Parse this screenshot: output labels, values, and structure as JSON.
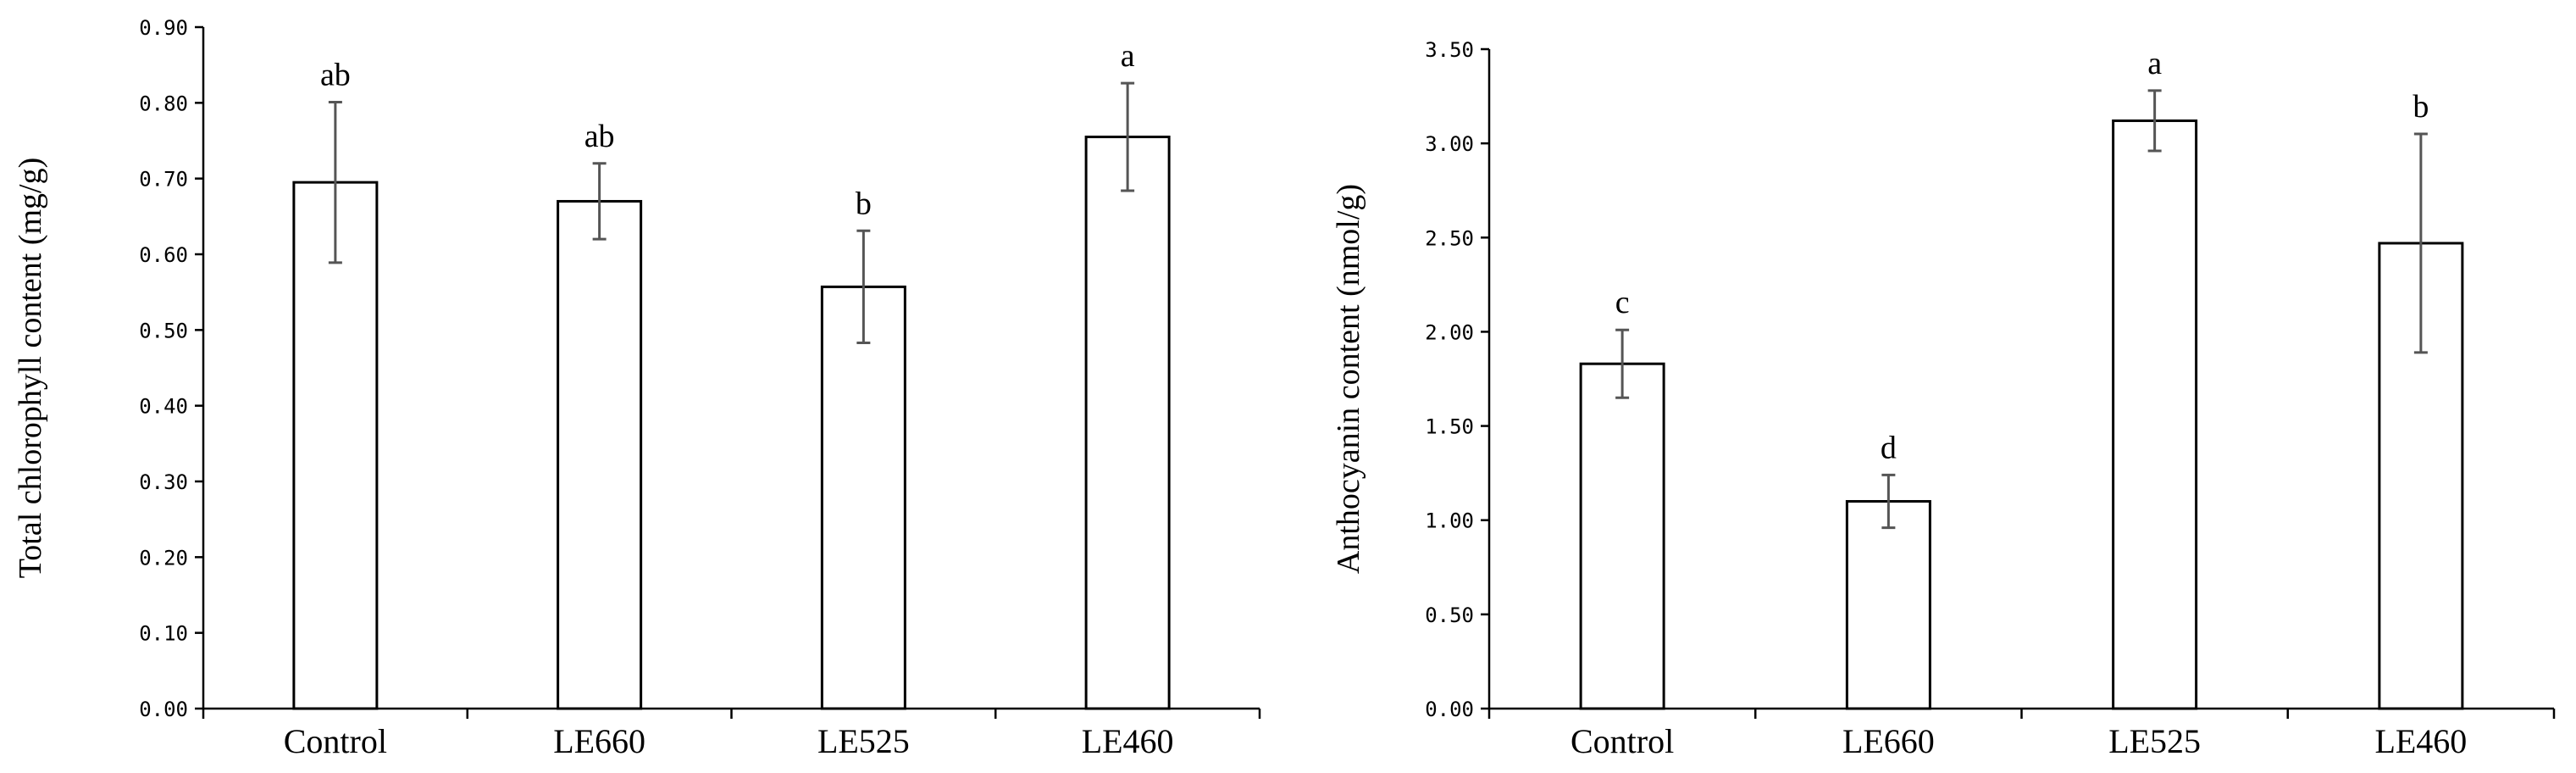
{
  "chart_data": [
    {
      "type": "bar",
      "categories": [
        "Control",
        "LE660",
        "LE525",
        "LE460"
      ],
      "values": [
        0.695,
        0.67,
        0.557,
        0.755
      ],
      "errors": [
        0.106,
        0.05,
        0.074,
        0.071
      ],
      "significance": [
        "ab",
        "ab",
        "b",
        "a"
      ],
      "title": "",
      "xlabel": "",
      "ylabel": "Total chlorophyll content (mg/g)",
      "ylim": [
        0,
        0.9
      ],
      "yticks": [
        "0.00",
        "0.10",
        "0.20",
        "0.30",
        "0.40",
        "0.50",
        "0.60",
        "0.70",
        "0.80",
        "0.90"
      ],
      "grid": false
    },
    {
      "type": "bar",
      "categories": [
        "Control",
        "LE660",
        "LE525",
        "LE460"
      ],
      "values": [
        1.83,
        1.1,
        3.12,
        2.47
      ],
      "errors": [
        0.18,
        0.14,
        0.16,
        0.58
      ],
      "significance": [
        "c",
        "d",
        "a",
        "b"
      ],
      "title": "",
      "xlabel": "",
      "ylabel": "Anthocyanin content (nmol/g)",
      "ylim": [
        0,
        3.5
      ],
      "yticks": [
        "0.00",
        "0.50",
        "1.00",
        "1.50",
        "2.00",
        "2.50",
        "3.00",
        "3.50"
      ],
      "grid": false
    }
  ]
}
